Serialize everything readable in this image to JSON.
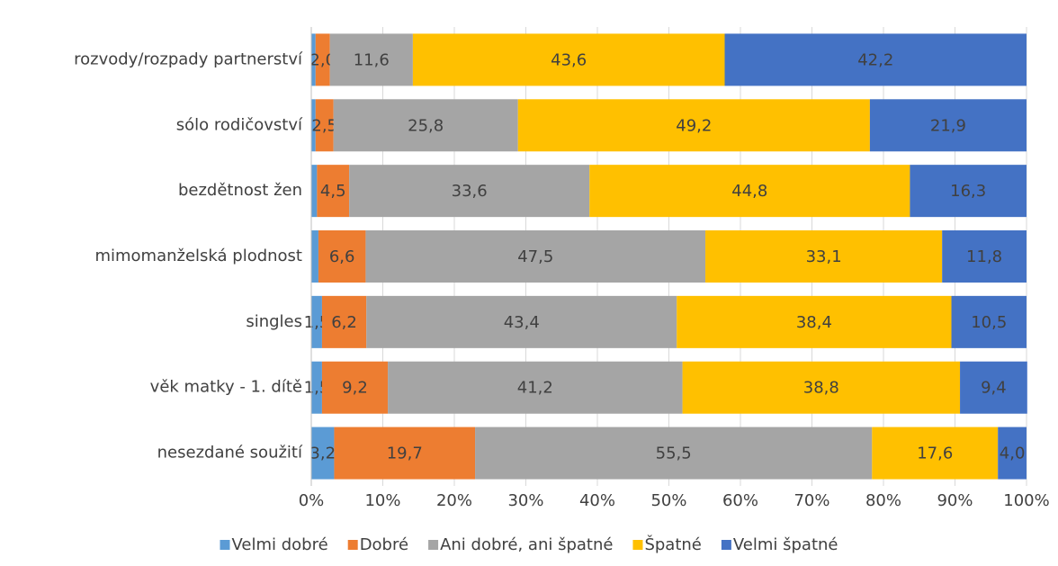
{
  "chart_data": {
    "type": "stacked-barh",
    "categories": [
      "rozvody/rozpady partnerství",
      "sólo rodičovství",
      "bezdětnost žen",
      "mimomanželská plodnost",
      "singles",
      "věk matky - 1. dítě",
      "nesezdané soužití"
    ],
    "series": [
      {
        "name": "Velmi dobré",
        "color": "#5b9bd5",
        "values": [
          0.6,
          0.6,
          0.8,
          1.0,
          1.5,
          1.5,
          3.2
        ],
        "value_labels": [
          null,
          null,
          null,
          null,
          "1,5",
          "1,5",
          "3,2"
        ]
      },
      {
        "name": "Dobré",
        "color": "#ed7d31",
        "values": [
          2.0,
          2.5,
          4.5,
          6.6,
          6.2,
          9.2,
          19.7
        ],
        "value_labels": [
          "2,0",
          "2,5",
          "4,5",
          "6,6",
          "6,2",
          "9,2",
          "19,7"
        ]
      },
      {
        "name": "Ani dobré, ani špatné",
        "color": "#a5a5a5",
        "values": [
          11.6,
          25.8,
          33.6,
          47.5,
          43.4,
          41.2,
          55.5
        ],
        "value_labels": [
          "11,6",
          "25,8",
          "33,6",
          "47,5",
          "43,4",
          "41,2",
          "55,5"
        ]
      },
      {
        "name": "Špatné",
        "color": "#ffc000",
        "values": [
          43.6,
          49.2,
          44.8,
          33.1,
          38.4,
          38.8,
          17.6
        ],
        "value_labels": [
          "43,6",
          "49,2",
          "44,8",
          "33,1",
          "38,4",
          "38,8",
          "17,6"
        ]
      },
      {
        "name": "Velmi špatné",
        "color": "#4472c4",
        "values": [
          42.2,
          21.9,
          16.3,
          11.8,
          10.5,
          9.4,
          4.0
        ],
        "value_labels": [
          "42,2",
          "21,9",
          "16,3",
          "11,8",
          "10,5",
          "9,4",
          "4,0"
        ]
      }
    ],
    "xlim": [
      0,
      100
    ],
    "xticks": [
      {
        "value": 0,
        "label": "0%"
      },
      {
        "value": 10,
        "label": "10%"
      },
      {
        "value": 20,
        "label": "20%"
      },
      {
        "value": 30,
        "label": "30%"
      },
      {
        "value": 40,
        "label": "40%"
      },
      {
        "value": 50,
        "label": "50%"
      },
      {
        "value": 60,
        "label": "60%"
      },
      {
        "value": 70,
        "label": "70%"
      },
      {
        "value": 80,
        "label": "80%"
      },
      {
        "value": 90,
        "label": "90%"
      },
      {
        "value": 100,
        "label": "100%"
      }
    ],
    "grid": true,
    "legend": "bottom"
  }
}
